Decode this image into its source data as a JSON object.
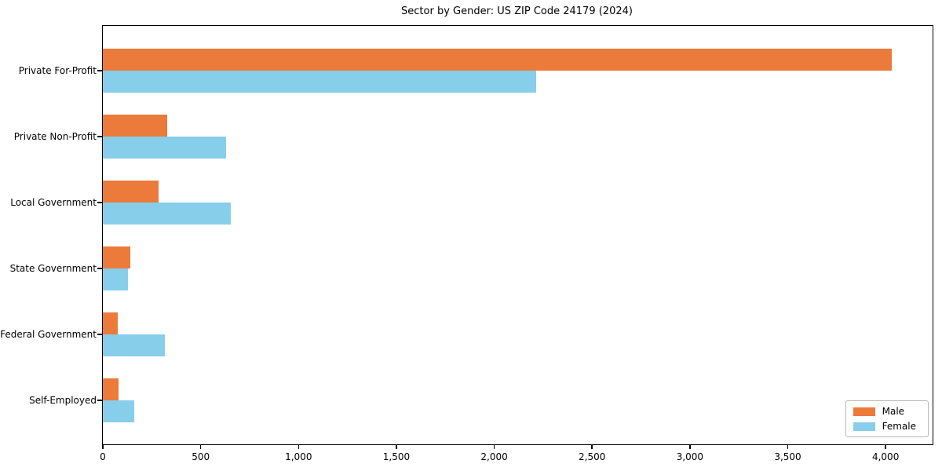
{
  "chart_data": {
    "type": "bar",
    "orientation": "horizontal",
    "title": "Sector by Gender: US ZIP Code 24179 (2024)",
    "categories": [
      "Private For-Profit",
      "Private Non-Profit",
      "Local Government",
      "State Government",
      "Federal Government",
      "Self-Employed"
    ],
    "series": [
      {
        "name": "Male",
        "color": "#EC7A3B",
        "values": [
          4030,
          330,
          285,
          140,
          78,
          82
        ]
      },
      {
        "name": "Female",
        "color": "#87CEEB",
        "values": [
          2215,
          630,
          655,
          130,
          315,
          160
        ]
      }
    ],
    "xlabel": "",
    "ylabel": "",
    "xlim": [
      0,
      4240
    ],
    "xticks": [
      0,
      500,
      1000,
      1500,
      2000,
      2500,
      3000,
      3500,
      4000
    ],
    "xtick_labels": [
      "0",
      "500",
      "1,000",
      "1,500",
      "2,000",
      "2,500",
      "3,000",
      "3,500",
      "4,000"
    ],
    "grid": false,
    "legend": {
      "position": "lower right",
      "entries": [
        "Male",
        "Female"
      ]
    }
  }
}
